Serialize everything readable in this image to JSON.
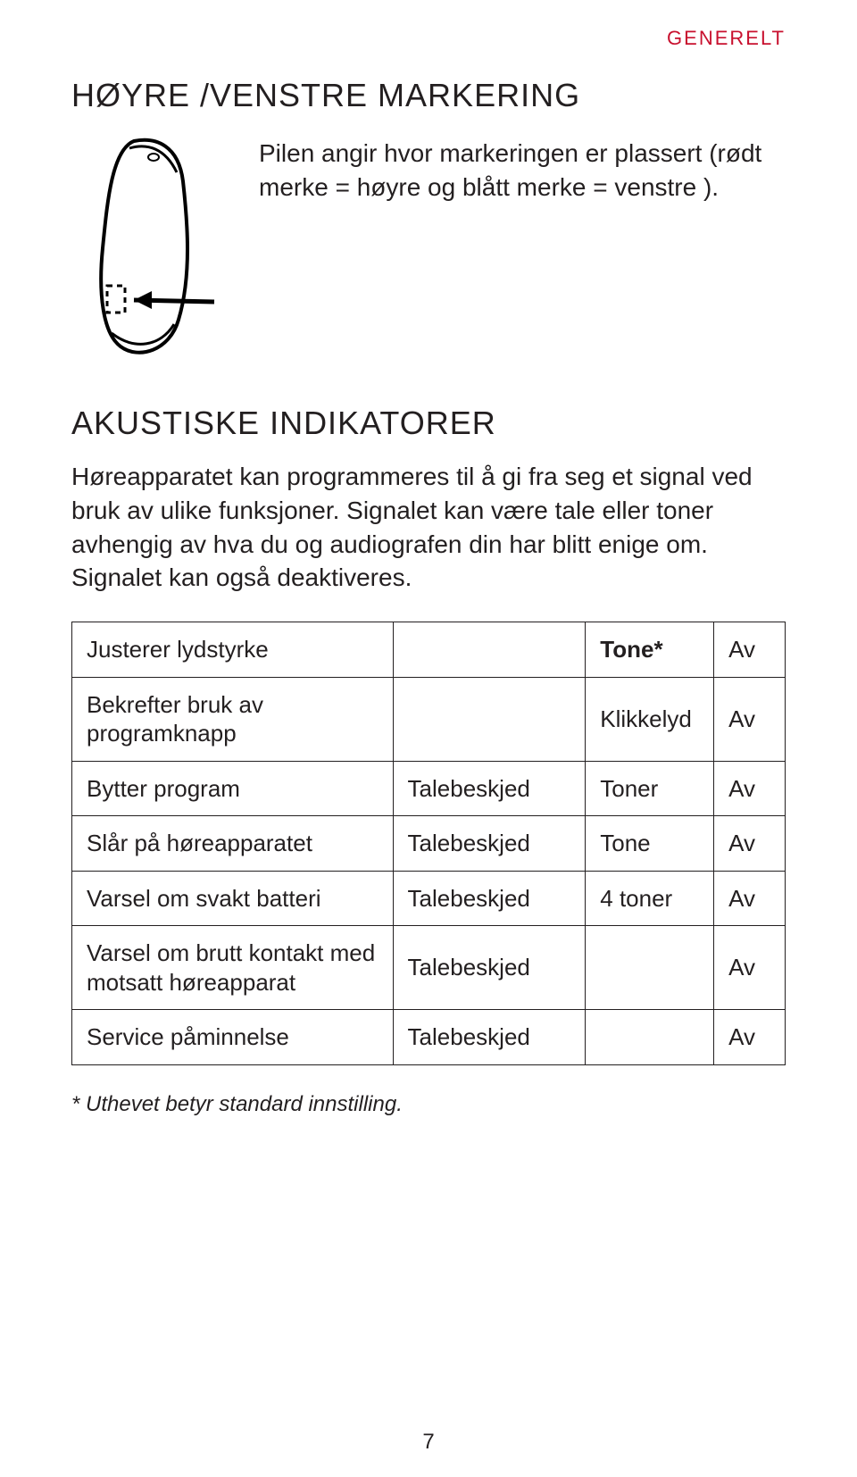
{
  "topLabel": "GENERELT",
  "section1": {
    "title": "HØYRE /VENSTRE MARKERING",
    "text": "Pilen angir hvor markeringen er plassert (rødt merke = høyre og blått merke = venstre )."
  },
  "section2": {
    "title": "AKUSTISKE INDIKATORER",
    "text": "Høreapparatet kan programmeres til å gi fra seg et signal ved bruk av ulike funksjoner. Signalet kan være tale eller toner avhengig av hva du og audiografen din har blitt enige om. Signalet kan også deaktiveres."
  },
  "table": {
    "rows": [
      {
        "c1": "Justerer lydstyrke",
        "c2": "",
        "c3": "Tone*",
        "c3bold": true,
        "c4": "Av"
      },
      {
        "c1": "Bekrefter bruk av programknapp",
        "c2": "",
        "c3": "Klikkelyd",
        "c3bold": false,
        "c4": "Av"
      },
      {
        "c1": "Bytter program",
        "c2": "Talebeskjed",
        "c3": "Toner",
        "c3bold": false,
        "c4": "Av"
      },
      {
        "c1": "Slår på høreapparatet",
        "c2": "Talebeskjed",
        "c3": "Tone",
        "c3bold": false,
        "c4": "Av"
      },
      {
        "c1": "Varsel om svakt batteri",
        "c2": "Talebeskjed",
        "c3": "4 toner",
        "c3bold": false,
        "c4": "Av"
      },
      {
        "c1": "Varsel om brutt kontakt med motsatt høreapparat",
        "c2": "Talebeskjed",
        "c3": "",
        "c3bold": false,
        "c4": "Av"
      },
      {
        "c1": "Service påminnelse",
        "c2": "Talebeskjed",
        "c3": "",
        "c3bold": false,
        "c4": "Av"
      }
    ]
  },
  "footnote": "* Uthevet betyr standard innstilling.",
  "pageNumber": "7",
  "colors": {
    "accent": "#c8102e",
    "text": "#231f20",
    "border": "#231f20",
    "background": "#ffffff"
  },
  "typography": {
    "title_fontsize": 36,
    "body_fontsize": 28,
    "table_fontsize": 26,
    "footnote_fontsize": 24
  }
}
